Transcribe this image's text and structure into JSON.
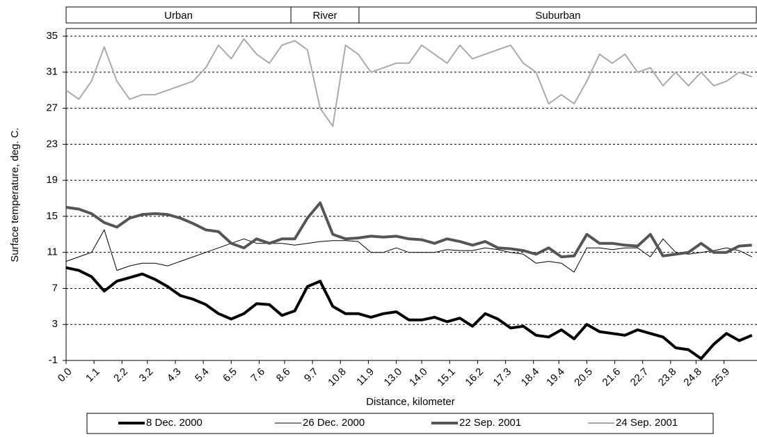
{
  "chart_data": {
    "type": "line",
    "xlabel": "Distance, kilometer",
    "ylabel": "Surface temperature, deg. C.",
    "regions": [
      {
        "label": "Urban",
        "start": 0,
        "end": 8.85
      },
      {
        "label": "River",
        "start": 8.85,
        "end": 11.53
      },
      {
        "label": "Suburban",
        "start": 11.53,
        "end": 27.2
      }
    ],
    "x": [
      0,
      0.5,
      1,
      1.5,
      2,
      2.5,
      3,
      3.5,
      4,
      4.5,
      5,
      5.5,
      6,
      6.5,
      7,
      7.5,
      8,
      8.5,
      9,
      9.5,
      10,
      10.5,
      11,
      11.5,
      12,
      12.5,
      13,
      13.5,
      14,
      14.5,
      15,
      15.5,
      16,
      16.5,
      17,
      17.5,
      18,
      18.5,
      19,
      19.5,
      20,
      20.5,
      21,
      21.5,
      22,
      22.5,
      23,
      23.5,
      24,
      24.5,
      25,
      25.5,
      26,
      26.5,
      27
    ],
    "series": [
      {
        "name": "8 Dec. 2000",
        "color": "#000000",
        "width": 4,
        "values": [
          9.3,
          9,
          8.3,
          6.7,
          7.8,
          8.2,
          8.6,
          8,
          7.2,
          6.2,
          5.8,
          5.2,
          4.2,
          3.6,
          4.2,
          5.3,
          5.2,
          4,
          4.5,
          7.2,
          7.8,
          5,
          4.2,
          4.2,
          3.8,
          4.2,
          4.4,
          3.5,
          3.5,
          3.8,
          3.3,
          3.7,
          2.8,
          4.2,
          3.6,
          2.6,
          2.8,
          1.8,
          1.6,
          2.4,
          1.4,
          3,
          2.2,
          2,
          1.8,
          2.4,
          2,
          1.6,
          0.4,
          0.2,
          -0.8,
          0.8,
          2,
          1.2,
          1.8
        ]
      },
      {
        "name": "26 Dec. 2000",
        "color": "#000000",
        "width": 1,
        "values": [
          10,
          10.5,
          11,
          13.5,
          9,
          9.5,
          9.8,
          9.8,
          9.5,
          10,
          10.5,
          11,
          11.5,
          12,
          12.5,
          12,
          12,
          12,
          11.8,
          12,
          12.2,
          12.3,
          12.3,
          12.2,
          11,
          11,
          11.5,
          11,
          11,
          11,
          11.3,
          11.2,
          11.2,
          11.5,
          11.3,
          11,
          10.8,
          9.8,
          10,
          9.8,
          8.8,
          11.5,
          11.5,
          11.3,
          11.5,
          11.5,
          10.5,
          12.5,
          11,
          10.8,
          11,
          11.2,
          11.5,
          11.2,
          10.5
        ]
      },
      {
        "name": "22 Sep. 2001",
        "color": "#555555",
        "width": 4,
        "values": [
          16,
          15.8,
          15.3,
          14.3,
          13.8,
          14.8,
          15.2,
          15.3,
          15.2,
          14.8,
          14.2,
          13.5,
          13.3,
          12,
          11.5,
          12.5,
          12,
          12.5,
          12.5,
          14.8,
          16.5,
          13,
          12.5,
          12.6,
          12.8,
          12.7,
          12.8,
          12.5,
          12.4,
          12,
          12.5,
          12.2,
          11.8,
          12.2,
          11.5,
          11.4,
          11.2,
          10.8,
          11.5,
          10.5,
          10.6,
          13,
          12,
          12,
          11.8,
          11.7,
          13,
          10.6,
          10.8,
          11,
          12,
          11,
          11,
          11.7,
          11.8
        ]
      },
      {
        "name": "24 Sep. 2001",
        "color": "#aaaaaa",
        "width": 2,
        "values": [
          29,
          28,
          30,
          33.8,
          30,
          28,
          28.5,
          28.5,
          29,
          29.5,
          30,
          31.5,
          34,
          32.5,
          34.7,
          33,
          32,
          34,
          34.5,
          33.5,
          27,
          25,
          34,
          33,
          31,
          31.5,
          32,
          32,
          34,
          33,
          32,
          34,
          32.5,
          33,
          33.5,
          34,
          32,
          31,
          27.5,
          28.5,
          27.5,
          30,
          33,
          32,
          33,
          31,
          31.5,
          29.5,
          31,
          29.5,
          31,
          29.5,
          30,
          31,
          30.5
        ]
      }
    ],
    "xlim": [
      0,
      27.2
    ],
    "ylim": [
      -1,
      35
    ],
    "xticks": [
      {
        "value": 0,
        "label": "0.0"
      },
      1.1,
      2.2,
      3.2,
      4.3,
      5.4,
      6.5,
      7.6,
      8.6,
      9.7,
      10.8,
      11.9,
      {
        "value": 13,
        "label": "13.0"
      },
      {
        "value": 14,
        "label": "14.0"
      },
      15.1,
      16.2,
      17.3,
      18.4,
      19.4,
      20.5,
      21.6,
      22.7,
      23.8,
      24.8,
      25.9
    ],
    "yticks": [
      -1,
      3,
      7,
      11,
      15,
      19,
      23,
      27,
      31,
      35
    ],
    "grid": true,
    "legend": "bottom"
  }
}
